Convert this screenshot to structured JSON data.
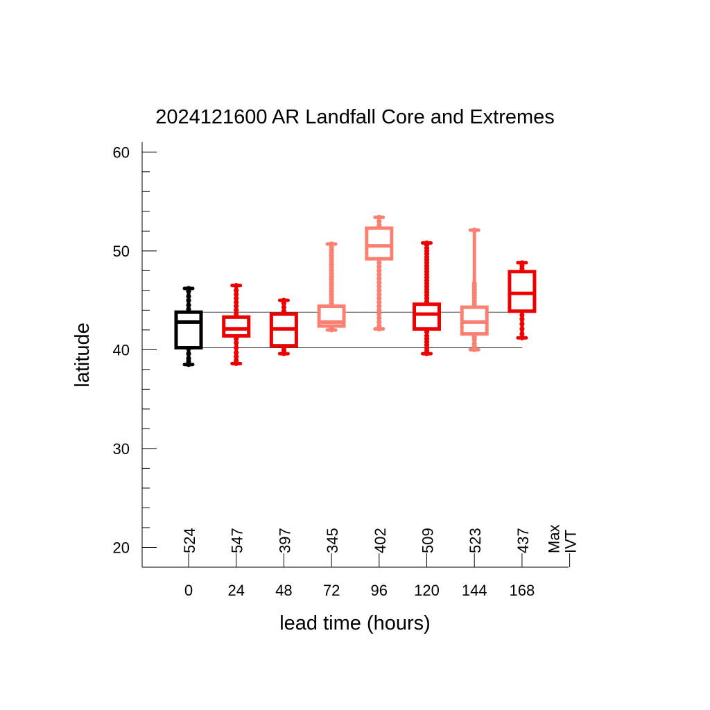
{
  "chart_data": {
    "type": "box",
    "title": "2024121600 AR Landfall Core and Extremes",
    "xlabel": "lead time (hours)",
    "ylabel": "latitude",
    "ylim": [
      18,
      61
    ],
    "yticks": [
      20,
      30,
      40,
      50,
      60
    ],
    "yminor_step": 2,
    "categories": [
      "0",
      "24",
      "48",
      "72",
      "96",
      "120",
      "144",
      "168"
    ],
    "extra_category_label": [
      "Max",
      "IVT"
    ],
    "counts": [
      "524",
      "547",
      "397",
      "345",
      "402",
      "509",
      "523",
      "437"
    ],
    "reference_lines": [
      {
        "y": 43.8,
        "from": "0",
        "to": "168"
      },
      {
        "y": 40.2,
        "from": "0",
        "to": "168"
      }
    ],
    "boxes": [
      {
        "x": "0",
        "q1": 40.2,
        "median": 42.8,
        "q3": 43.8,
        "whisker_low": 38.5,
        "whisker_high": 46.2,
        "color": "#000000",
        "outliers": [
          38.5,
          38.8,
          39.1,
          39.6,
          40.1,
          44.1,
          44.5,
          45.0,
          45.4,
          45.9,
          46.2
        ]
      },
      {
        "x": "24",
        "q1": 41.4,
        "median": 42.1,
        "q3": 43.3,
        "whisker_low": 38.6,
        "whisker_high": 46.5,
        "color": "#ee0000",
        "outliers": [
          38.6,
          38.9,
          39.3,
          39.7,
          40.2,
          40.7,
          41.1,
          43.6,
          44.0,
          44.4,
          44.8,
          45.2,
          45.6,
          46.0,
          46.5
        ]
      },
      {
        "x": "48",
        "q1": 40.4,
        "median": 42.1,
        "q3": 43.6,
        "whisker_low": 39.6,
        "whisker_high": 45.0,
        "color": "#ee0000",
        "outliers": [
          39.6,
          39.9,
          40.2,
          43.9,
          44.3,
          44.7,
          45.0
        ]
      },
      {
        "x": "72",
        "q1": 42.4,
        "median": 42.8,
        "q3": 44.4,
        "whisker_low": 42.0,
        "whisker_high": 50.7,
        "color": "#fa8072",
        "outliers": [
          42.0,
          42.2,
          44.7,
          45.0,
          45.3,
          45.6,
          45.9,
          46.2,
          46.5,
          46.8,
          47.1,
          47.4,
          47.7,
          48.0,
          48.3,
          48.6,
          48.9,
          49.2,
          49.5,
          49.8,
          50.1,
          50.4,
          50.7
        ]
      },
      {
        "x": "96",
        "q1": 49.2,
        "median": 50.5,
        "q3": 52.3,
        "whisker_low": 42.1,
        "whisker_high": 53.4,
        "color": "#fa8072",
        "outliers": [
          42.1,
          42.4,
          42.8,
          43.2,
          43.6,
          44.0,
          44.4,
          44.8,
          45.2,
          45.6,
          46.0,
          46.4,
          46.8,
          47.2,
          47.6,
          48.0,
          48.4,
          48.8,
          52.6,
          53.0,
          53.4
        ]
      },
      {
        "x": "120",
        "q1": 42.1,
        "median": 43.6,
        "q3": 44.6,
        "whisker_low": 39.6,
        "whisker_high": 50.8,
        "color": "#ee0000",
        "outliers": [
          39.6,
          39.9,
          40.2,
          40.5,
          40.8,
          41.1,
          41.4,
          41.8,
          44.9,
          45.2,
          45.5,
          45.8,
          46.1,
          46.4,
          46.7,
          47.0,
          47.3,
          47.6,
          47.9,
          48.2,
          48.5,
          48.8,
          49.1,
          49.4,
          49.7,
          50.0,
          50.3,
          50.6,
          50.8
        ]
      },
      {
        "x": "144",
        "q1": 41.6,
        "median": 42.8,
        "q3": 44.3,
        "whisker_low": 40.0,
        "whisker_high": 52.1,
        "color": "#fa8072",
        "outliers": [
          40.0,
          40.3,
          40.6,
          41.0,
          41.3,
          44.6,
          44.9,
          45.2,
          45.5,
          45.8,
          46.1,
          46.4,
          46.7,
          52.1
        ]
      },
      {
        "x": "168",
        "q1": 43.9,
        "median": 45.7,
        "q3": 47.9,
        "whisker_low": 41.2,
        "whisker_high": 48.8,
        "color": "#ee0000",
        "outliers": [
          41.2,
          41.6,
          42.1,
          42.6,
          43.1,
          43.5,
          48.2,
          48.5,
          48.8
        ]
      }
    ]
  }
}
